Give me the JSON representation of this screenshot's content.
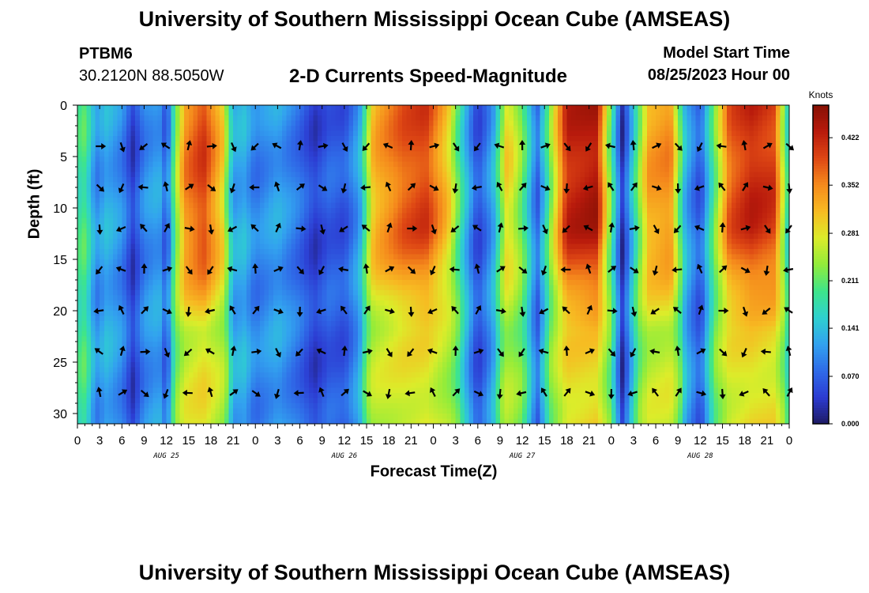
{
  "header": {
    "title": "University of Southern Mississippi Ocean Cube (AMSEAS)",
    "station": "PTBM6",
    "coordinates": "30.2120N  88.5050W",
    "plot_title": "2-D Currents Speed-Magnitude",
    "model_start_label": "Model Start Time",
    "model_start_value": "08/25/2023 Hour 00"
  },
  "footer": {
    "title": "University of Southern Mississippi Ocean Cube (AMSEAS)"
  },
  "chart_data": {
    "type": "heatmap",
    "title": "2-D Currents Speed-Magnitude",
    "xlabel": "Forecast Time(Z)",
    "ylabel": "Depth (ft)",
    "xlim": [
      0,
      96
    ],
    "ylim": [
      0,
      31
    ],
    "x_ticks": [
      0,
      3,
      6,
      9,
      12,
      15,
      18,
      21,
      24,
      27,
      30,
      33,
      36,
      39,
      42,
      45,
      48,
      51,
      54,
      57,
      60,
      63,
      66,
      69,
      72,
      75,
      78,
      81,
      84,
      87,
      90,
      93,
      96
    ],
    "x_tick_labels": [
      "0",
      "3",
      "6",
      "9",
      "12",
      "15",
      "18",
      "21",
      "0",
      "3",
      "6",
      "9",
      "12",
      "15",
      "18",
      "21",
      "0",
      "3",
      "6",
      "9",
      "12",
      "15",
      "18",
      "21",
      "0",
      "3",
      "6",
      "9",
      "12",
      "15",
      "18",
      "21",
      "0"
    ],
    "day_labels": [
      {
        "hour": 12,
        "label": "AUG 25"
      },
      {
        "hour": 36,
        "label": "AUG 26"
      },
      {
        "hour": 60,
        "label": "AUG 27"
      },
      {
        "hour": 84,
        "label": "AUG 28"
      }
    ],
    "y_ticks": [
      0,
      5,
      10,
      15,
      20,
      25,
      30
    ],
    "y_tick_labels": [
      "0",
      "5",
      "10",
      "15",
      "20",
      "25",
      "30"
    ],
    "arrow_depths": [
      4,
      8,
      12,
      16,
      20,
      24,
      28
    ],
    "arrow_hours": [
      3,
      6,
      9,
      12,
      15,
      18,
      21,
      24,
      27,
      30,
      33,
      36,
      39,
      42,
      45,
      48,
      51,
      54,
      57,
      60,
      63,
      66,
      69,
      72,
      75,
      78,
      81,
      84,
      87,
      90,
      93,
      96
    ],
    "time_profile_knots": [
      {
        "hour": 0,
        "speed": 0.18
      },
      {
        "hour": 1,
        "speed": 0.2
      },
      {
        "hour": 2.5,
        "speed": 0.1
      },
      {
        "hour": 4,
        "speed": 0.13
      },
      {
        "hour": 6,
        "speed": 0.1
      },
      {
        "hour": 7.5,
        "speed": 0.04
      },
      {
        "hour": 9,
        "speed": 0.1
      },
      {
        "hour": 11,
        "speed": 0.12
      },
      {
        "hour": 12,
        "speed": 0.06
      },
      {
        "hour": 13,
        "speed": 0.2
      },
      {
        "hour": 14.5,
        "speed": 0.35
      },
      {
        "hour": 17,
        "speed": 0.4
      },
      {
        "hour": 19.5,
        "speed": 0.3
      },
      {
        "hour": 21,
        "speed": 0.12
      },
      {
        "hour": 22.5,
        "speed": 0.13
      },
      {
        "hour": 24,
        "speed": 0.09
      },
      {
        "hour": 27,
        "speed": 0.12
      },
      {
        "hour": 30,
        "speed": 0.08
      },
      {
        "hour": 32,
        "speed": 0.04
      },
      {
        "hour": 34,
        "speed": 0.07
      },
      {
        "hour": 36,
        "speed": 0.06
      },
      {
        "hour": 38,
        "speed": 0.12
      },
      {
        "hour": 40,
        "speed": 0.32
      },
      {
        "hour": 44,
        "speed": 0.38
      },
      {
        "hour": 47,
        "speed": 0.4
      },
      {
        "hour": 50,
        "speed": 0.3
      },
      {
        "hour": 52,
        "speed": 0.16
      },
      {
        "hour": 54,
        "speed": 0.05
      },
      {
        "hour": 56,
        "speed": 0.12
      },
      {
        "hour": 58,
        "speed": 0.3
      },
      {
        "hour": 60,
        "speed": 0.22
      },
      {
        "hour": 62,
        "speed": 0.07
      },
      {
        "hour": 63.5,
        "speed": 0.2
      },
      {
        "hour": 66,
        "speed": 0.42
      },
      {
        "hour": 70,
        "speed": 0.44
      },
      {
        "hour": 72,
        "speed": 0.2
      },
      {
        "hour": 73.5,
        "speed": 0.03
      },
      {
        "hour": 75,
        "speed": 0.16
      },
      {
        "hour": 77,
        "speed": 0.33
      },
      {
        "hour": 80,
        "speed": 0.35
      },
      {
        "hour": 82,
        "speed": 0.13
      },
      {
        "hour": 84,
        "speed": 0.06
      },
      {
        "hour": 86,
        "speed": 0.22
      },
      {
        "hour": 88,
        "speed": 0.38
      },
      {
        "hour": 91,
        "speed": 0.42
      },
      {
        "hour": 94,
        "speed": 0.4
      },
      {
        "hour": 96,
        "speed": 0.15
      }
    ],
    "colorbar": {
      "label": "Knots",
      "min": 0.0,
      "max": 0.47,
      "ticks": [
        0.0,
        0.07,
        0.141,
        0.211,
        0.281,
        0.352,
        0.422
      ],
      "tick_labels": [
        "0.000",
        "0.070",
        "0.141",
        "0.211",
        "0.281",
        "0.352",
        "0.422"
      ],
      "colors": [
        "#1e1a64",
        "#2c3cd2",
        "#2f6be8",
        "#32a2ef",
        "#2ed1cf",
        "#3ee58a",
        "#92ec3a",
        "#dcec2a",
        "#f7ba22",
        "#f58a1c",
        "#de4714",
        "#b81a0c",
        "#861004"
      ]
    }
  }
}
